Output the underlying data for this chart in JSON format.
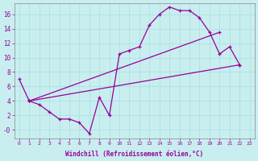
{
  "xlabel": "Windchill (Refroidissement éolien,°C)",
  "background_color": "#c8eef0",
  "line_color": "#990099",
  "grid_color": "#aadddd",
  "xlim": [
    -0.5,
    23.5
  ],
  "ylim": [
    -1.2,
    17.5
  ],
  "xticks": [
    0,
    1,
    2,
    3,
    4,
    5,
    6,
    7,
    8,
    9,
    10,
    11,
    12,
    13,
    14,
    15,
    16,
    17,
    18,
    19,
    20,
    21,
    22,
    23
  ],
  "yticks": [
    0,
    2,
    4,
    6,
    8,
    10,
    12,
    14,
    16
  ],
  "ytick_labels": [
    "-0",
    "2",
    "4",
    "6",
    "8",
    "10",
    "12",
    "14",
    "16"
  ],
  "series_main": {
    "x": [
      0,
      1,
      2,
      3,
      4,
      5,
      6,
      7,
      8,
      9,
      10,
      11,
      12,
      13,
      14,
      15,
      16,
      17,
      18,
      19,
      20,
      21,
      22
    ],
    "y": [
      7,
      4,
      3.5,
      2.5,
      1.5,
      1.5,
      1.0,
      -0.5,
      4.5,
      2.0,
      10.5,
      11.0,
      11.5,
      14.5,
      16.0,
      17.0,
      16.5,
      16.5,
      15.5,
      13.5,
      10.5,
      11.5,
      9.0
    ]
  },
  "series_diag1": {
    "x": [
      1,
      22
    ],
    "y": [
      4.0,
      9.0
    ]
  },
  "series_diag2": {
    "x": [
      1,
      20
    ],
    "y": [
      4.0,
      13.5
    ]
  }
}
